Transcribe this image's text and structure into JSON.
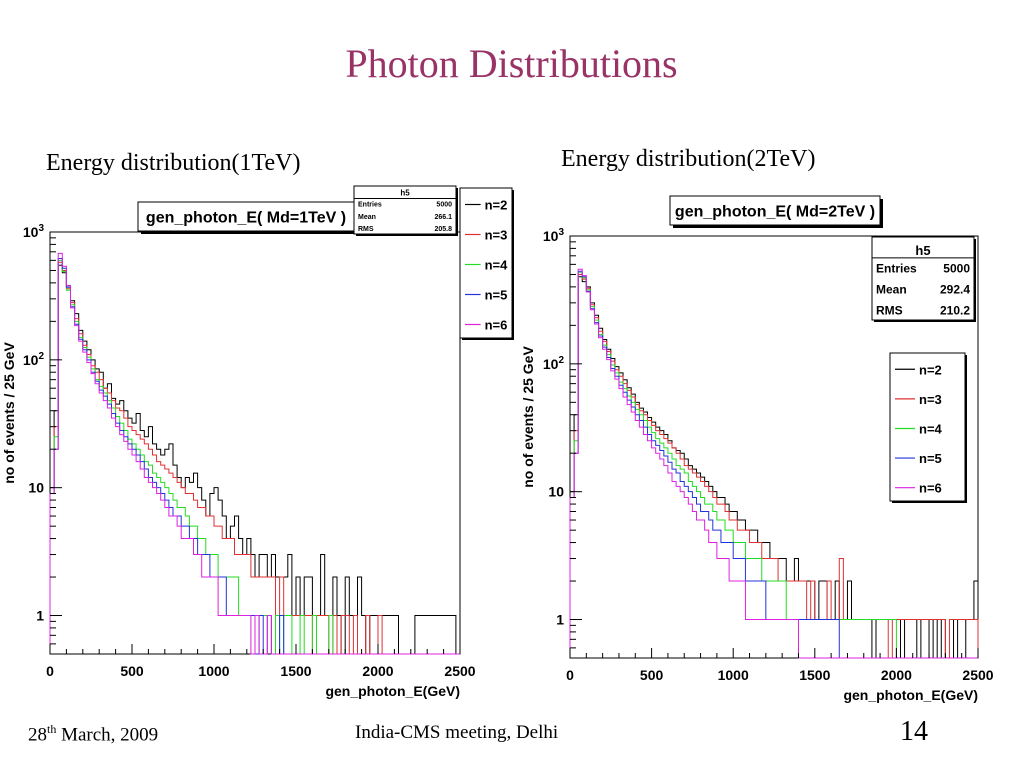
{
  "slide": {
    "title": "Photon Distributions",
    "footer_date_day": "28",
    "footer_date_sup": "th",
    "footer_date_rest": " March, 2009",
    "footer_center": "India-CMS meeting, Delhi",
    "page_number": "14"
  },
  "colors": {
    "title": "#993366",
    "n2": "#000000",
    "n3": "#e03030",
    "n4": "#22dd22",
    "n5": "#2233dd",
    "n6": "#e020e0"
  },
  "chart_data": [
    {
      "type": "line",
      "panel_caption": "Energy distribution(1TeV)",
      "histogram_title": "gen_photon_E( Md=1TeV )",
      "xlabel": "gen_photon_E(GeV)",
      "ylabel": "no of events / 25 GeV",
      "xlim": [
        0,
        2500
      ],
      "ylim": [
        0.5,
        1000
      ],
      "log_y": true,
      "x_ticks": [
        "0",
        "500",
        "1000",
        "1500",
        "2000",
        "2500"
      ],
      "y_ticks": [
        {
          "value": 1000,
          "base": "10",
          "exp": "3"
        },
        {
          "value": 100,
          "base": "10",
          "exp": "2"
        },
        {
          "value": 10,
          "base": "10",
          "exp": ""
        },
        {
          "value": 1,
          "base": "1",
          "exp": ""
        }
      ],
      "grid": false,
      "legend_position": "top-right",
      "stats": {
        "name": "h5",
        "rows": [
          [
            "Entries",
            "5000"
          ],
          [
            "Mean",
            "266.1"
          ],
          [
            "RMS",
            "205.8"
          ]
        ]
      },
      "bin_width": 25,
      "series": [
        {
          "name": "n=2",
          "color": "#000000",
          "values": [
            10,
            40,
            550,
            480,
            380,
            290,
            230,
            170,
            140,
            120,
            100,
            85,
            80,
            60,
            65,
            50,
            45,
            48,
            40,
            35,
            32,
            38,
            28,
            25,
            30,
            22,
            20,
            18,
            20,
            22,
            15,
            12,
            10,
            12,
            11,
            13,
            10,
            8,
            6,
            9,
            10,
            8,
            6,
            4,
            5,
            6,
            4,
            3,
            4,
            3,
            2,
            3,
            3,
            2,
            3,
            2,
            2,
            2,
            3,
            1,
            2,
            1,
            2,
            2,
            1,
            1,
            3,
            1,
            1,
            2,
            1,
            0,
            2,
            1,
            1,
            2,
            1,
            0,
            1,
            1,
            1,
            1,
            1,
            1,
            1,
            0,
            0,
            0,
            0,
            1,
            1,
            1,
            1,
            1,
            1,
            1,
            1,
            1,
            1,
            0
          ]
        },
        {
          "name": "n=3",
          "color": "#e03030",
          "values": [
            9,
            30,
            580,
            500,
            360,
            280,
            210,
            160,
            130,
            110,
            90,
            80,
            70,
            60,
            55,
            48,
            42,
            40,
            35,
            30,
            28,
            26,
            24,
            22,
            20,
            18,
            16,
            15,
            14,
            13,
            12,
            11,
            10,
            9,
            9,
            8,
            7,
            7,
            6,
            6,
            5,
            5,
            4,
            4,
            4,
            3,
            3,
            3,
            3,
            2,
            2,
            2,
            2,
            2,
            2,
            1,
            2,
            1,
            1,
            1,
            1,
            1,
            1,
            1,
            0,
            1,
            1,
            1,
            0,
            1,
            0,
            1,
            1,
            0,
            1,
            0,
            0,
            1,
            0,
            0,
            1,
            0,
            0,
            0,
            0,
            0,
            0,
            0,
            0,
            0,
            0,
            0,
            0,
            0,
            0,
            0,
            0,
            0,
            0,
            0
          ]
        },
        {
          "name": "n=4",
          "color": "#22dd22",
          "values": [
            9,
            25,
            600,
            490,
            350,
            270,
            200,
            150,
            125,
            105,
            85,
            70,
            62,
            55,
            48,
            42,
            36,
            32,
            28,
            24,
            22,
            20,
            18,
            16,
            15,
            13,
            12,
            11,
            10,
            9,
            8,
            7,
            7,
            6,
            5,
            5,
            4,
            4,
            3,
            3,
            3,
            2,
            2,
            2,
            2,
            2,
            1,
            1,
            1,
            1,
            1,
            1,
            1,
            1,
            0,
            1,
            0,
            1,
            1,
            0,
            0,
            1,
            0,
            0,
            1,
            0,
            0,
            0,
            1,
            0,
            0,
            0,
            0,
            0,
            0,
            0,
            0,
            0,
            0,
            0,
            0,
            0,
            0,
            0,
            0,
            0,
            0,
            0,
            0,
            0,
            0,
            0,
            0,
            0,
            0,
            0,
            0,
            0,
            0,
            0
          ]
        },
        {
          "name": "n=5",
          "color": "#2233dd",
          "values": [
            9,
            20,
            620,
            520,
            370,
            260,
            190,
            145,
            120,
            100,
            80,
            68,
            58,
            52,
            45,
            38,
            32,
            28,
            25,
            22,
            20,
            18,
            16,
            14,
            12,
            11,
            10,
            9,
            8,
            7,
            6,
            6,
            5,
            5,
            4,
            4,
            3,
            3,
            3,
            2,
            2,
            2,
            2,
            1,
            1,
            1,
            1,
            1,
            1,
            1,
            0,
            1,
            0,
            1,
            0,
            0,
            1,
            0,
            0,
            0,
            0,
            0,
            0,
            0,
            0,
            0,
            0,
            0,
            0,
            0,
            0,
            0,
            0,
            0,
            0,
            0,
            0,
            0,
            0,
            0,
            0,
            0,
            0,
            0,
            0,
            0,
            0,
            0,
            0,
            0,
            0,
            0,
            0,
            0,
            0,
            0,
            0,
            0,
            0,
            0
          ]
        },
        {
          "name": "n=6",
          "color": "#e020e0",
          "values": [
            9,
            20,
            680,
            540,
            380,
            255,
            185,
            140,
            115,
            95,
            78,
            65,
            55,
            48,
            42,
            35,
            30,
            26,
            23,
            20,
            18,
            16,
            14,
            12,
            11,
            10,
            9,
            8,
            7,
            6,
            6,
            5,
            4,
            4,
            4,
            3,
            3,
            2,
            2,
            2,
            2,
            1,
            1,
            1,
            1,
            1,
            1,
            1,
            1,
            0,
            1,
            0,
            0,
            1,
            0,
            0,
            0,
            0,
            0,
            0,
            0,
            0,
            0,
            0,
            0,
            0,
            0,
            0,
            0,
            0,
            0,
            0,
            0,
            0,
            0,
            0,
            0,
            0,
            0,
            0,
            0,
            0,
            0,
            0,
            0,
            0,
            0,
            0,
            0,
            0,
            0,
            0,
            0,
            0,
            0,
            0,
            0,
            0,
            0,
            0
          ]
        }
      ]
    },
    {
      "type": "line",
      "panel_caption": "Energy distribution(2TeV)",
      "histogram_title": "gen_photon_E( Md=2TeV )",
      "xlabel": "gen_photon_E(GeV)",
      "ylabel": "no of events / 25 GeV",
      "xlim": [
        0,
        2500
      ],
      "ylim": [
        0.5,
        1000
      ],
      "log_y": true,
      "x_ticks": [
        "0",
        "500",
        "1000",
        "1500",
        "2000",
        "2500"
      ],
      "y_ticks": [
        {
          "value": 1000,
          "base": "10",
          "exp": "3"
        },
        {
          "value": 100,
          "base": "10",
          "exp": "2"
        },
        {
          "value": 10,
          "base": "10",
          "exp": ""
        },
        {
          "value": 1,
          "base": "1",
          "exp": ""
        }
      ],
      "grid": false,
      "legend_position": "right",
      "stats": {
        "name": "h5",
        "rows": [
          [
            "Entries",
            "5000"
          ],
          [
            "Mean",
            "292.4"
          ],
          [
            "RMS",
            "210.2"
          ]
        ]
      },
      "bin_width": 25,
      "series": [
        {
          "name": "n=2",
          "color": "#000000",
          "values": [
            10,
            40,
            480,
            440,
            400,
            300,
            240,
            190,
            155,
            130,
            110,
            95,
            85,
            75,
            65,
            58,
            50,
            45,
            42,
            38,
            35,
            32,
            30,
            28,
            25,
            22,
            21,
            20,
            18,
            16,
            15,
            14,
            13,
            12,
            11,
            10,
            9,
            9,
            8,
            7,
            7,
            6,
            6,
            5,
            5,
            5,
            4,
            4,
            4,
            3,
            3,
            3,
            3,
            2,
            2,
            3,
            2,
            2,
            2,
            2,
            1,
            2,
            2,
            1,
            1,
            2,
            1,
            1,
            2,
            1,
            1,
            1,
            1,
            1,
            0,
            1,
            1,
            1,
            1,
            1,
            1,
            0,
            1,
            1,
            1,
            0,
            1,
            1,
            0,
            1,
            0,
            1,
            0,
            0,
            1,
            0,
            0,
            1,
            1,
            2
          ]
        },
        {
          "name": "n=3",
          "color": "#e03030",
          "values": [
            9,
            30,
            500,
            460,
            390,
            290,
            230,
            180,
            150,
            125,
            105,
            90,
            80,
            70,
            62,
            55,
            48,
            43,
            40,
            36,
            33,
            30,
            28,
            26,
            24,
            22,
            20,
            18,
            16,
            15,
            14,
            13,
            12,
            11,
            10,
            9,
            8,
            8,
            7,
            6,
            6,
            5,
            5,
            5,
            4,
            4,
            4,
            3,
            3,
            3,
            3,
            2,
            2,
            2,
            2,
            2,
            2,
            2,
            1,
            2,
            1,
            1,
            1,
            2,
            1,
            1,
            3,
            1,
            1,
            1,
            1,
            1,
            1,
            1,
            1,
            1,
            1,
            1,
            0,
            1,
            1,
            1,
            1,
            1,
            1,
            1,
            1,
            1,
            1,
            1,
            1,
            1,
            0,
            1,
            1,
            1,
            1,
            1,
            1,
            1
          ]
        },
        {
          "name": "n=4",
          "color": "#22dd22",
          "values": [
            9,
            25,
            520,
            470,
            380,
            280,
            220,
            170,
            140,
            118,
            98,
            85,
            72,
            64,
            56,
            50,
            44,
            40,
            36,
            32,
            29,
            26,
            24,
            22,
            20,
            18,
            16,
            15,
            14,
            12,
            11,
            10,
            9,
            8,
            8,
            7,
            6,
            6,
            5,
            5,
            4,
            4,
            4,
            3,
            3,
            3,
            3,
            2,
            2,
            2,
            2,
            2,
            2,
            1,
            1,
            1,
            1,
            1,
            1,
            1,
            1,
            1,
            1,
            1,
            1,
            1,
            1,
            1,
            1,
            1,
            1,
            1,
            1,
            1,
            1,
            1,
            1,
            1,
            1,
            1,
            0,
            0,
            0,
            0,
            0,
            0,
            0,
            0,
            0,
            0,
            0,
            0,
            0,
            0,
            0,
            0,
            0,
            0,
            0,
            0
          ]
        },
        {
          "name": "n=5",
          "color": "#2233dd",
          "values": [
            9,
            20,
            530,
            480,
            370,
            270,
            210,
            165,
            135,
            112,
            92,
            80,
            68,
            60,
            52,
            46,
            40,
            36,
            32,
            28,
            25,
            23,
            21,
            19,
            17,
            15,
            14,
            12,
            11,
            10,
            9,
            8,
            7,
            7,
            6,
            5,
            5,
            4,
            4,
            4,
            3,
            3,
            3,
            2,
            2,
            2,
            2,
            2,
            1,
            1,
            1,
            1,
            1,
            1,
            1,
            1,
            1,
            1,
            1,
            1,
            1,
            1,
            1,
            1,
            1,
            1,
            0,
            0,
            0,
            0,
            0,
            0,
            0,
            0,
            0,
            0,
            0,
            0,
            0,
            0,
            0,
            0,
            0,
            0,
            0,
            0,
            0,
            0,
            0,
            0,
            0,
            0,
            0,
            0,
            0,
            0,
            0,
            0,
            0,
            0
          ]
        },
        {
          "name": "n=6",
          "color": "#e020e0",
          "values": [
            9,
            20,
            550,
            490,
            365,
            265,
            205,
            160,
            130,
            108,
            88,
            76,
            64,
            55,
            48,
            42,
            36,
            32,
            28,
            25,
            22,
            20,
            18,
            16,
            14,
            12,
            11,
            10,
            9,
            8,
            7,
            6,
            6,
            5,
            4,
            4,
            3,
            3,
            3,
            2,
            2,
            2,
            2,
            1,
            1,
            1,
            1,
            1,
            1,
            1,
            1,
            1,
            1,
            1,
            1,
            1,
            0,
            0,
            0,
            0,
            0,
            0,
            0,
            0,
            0,
            0,
            0,
            0,
            0,
            0,
            0,
            0,
            0,
            0,
            0,
            0,
            0,
            0,
            0,
            0,
            0,
            0,
            0,
            0,
            0,
            0,
            0,
            0,
            0,
            0,
            0,
            0,
            0,
            0,
            0,
            0,
            0,
            0,
            0,
            0
          ]
        }
      ]
    }
  ]
}
